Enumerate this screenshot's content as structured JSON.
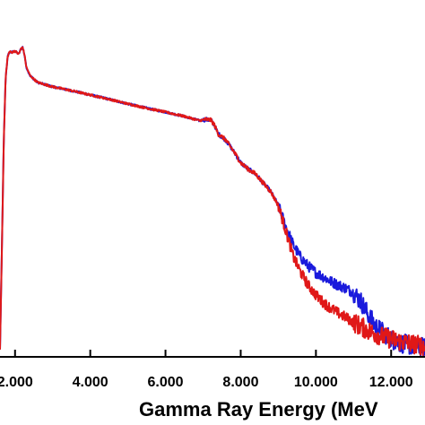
{
  "chart_data": {
    "type": "line",
    "title": "",
    "xlabel": "Gamma Ray Energy (MeV",
    "ylabel": "",
    "xlim": [
      1.6,
      12.9
    ],
    "ylim": [
      0,
      1.0
    ],
    "x_ticks": [
      2.0,
      4.0,
      6.0,
      8.0,
      10.0,
      12.0
    ],
    "x_tick_labels": [
      "2.000",
      "4.000",
      "6.000",
      "8.000",
      "10.000",
      "12.000"
    ],
    "legend": "none",
    "grid": false,
    "series": [
      {
        "color": "#1a1adc",
        "x": [
          1.6,
          1.65,
          1.7,
          1.75,
          1.8,
          1.85,
          1.9,
          2.0,
          2.1,
          2.15,
          2.2,
          2.25,
          2.3,
          2.4,
          2.6,
          3.0,
          3.5,
          4.0,
          4.5,
          5.0,
          5.5,
          6.0,
          6.5,
          6.9,
          7.05,
          7.2,
          7.3,
          7.4,
          7.6,
          7.8,
          8.0,
          8.2,
          8.4,
          8.6,
          8.8,
          9.0,
          9.2,
          9.4,
          9.6,
          9.8,
          10.0,
          10.2,
          10.4,
          10.6,
          10.8,
          11.0,
          11.2,
          11.4,
          11.6,
          11.8,
          12.0,
          12.2,
          12.4,
          12.6,
          12.8,
          12.9
        ],
        "y": [
          0.02,
          0.3,
          0.6,
          0.78,
          0.84,
          0.855,
          0.853,
          0.857,
          0.848,
          0.862,
          0.868,
          0.847,
          0.812,
          0.788,
          0.769,
          0.757,
          0.746,
          0.734,
          0.722,
          0.709,
          0.697,
          0.686,
          0.674,
          0.662,
          0.665,
          0.664,
          0.65,
          0.625,
          0.608,
          0.578,
          0.544,
          0.526,
          0.512,
          0.487,
          0.463,
          0.424,
          0.365,
          0.313,
          0.278,
          0.254,
          0.236,
          0.224,
          0.211,
          0.201,
          0.192,
          0.18,
          0.155,
          0.116,
          0.084,
          0.068,
          0.05,
          0.04,
          0.035,
          0.03,
          0.028,
          0.025
        ]
      },
      {
        "color": "#e01818",
        "x": [
          1.6,
          1.65,
          1.7,
          1.75,
          1.8,
          1.85,
          1.9,
          2.0,
          2.1,
          2.15,
          2.2,
          2.25,
          2.3,
          2.4,
          2.6,
          3.0,
          3.5,
          4.0,
          4.5,
          5.0,
          5.5,
          6.0,
          6.5,
          6.9,
          7.05,
          7.2,
          7.3,
          7.4,
          7.6,
          7.8,
          8.0,
          8.2,
          8.4,
          8.6,
          8.8,
          9.0,
          9.2,
          9.4,
          9.6,
          9.8,
          10.0,
          10.2,
          10.4,
          10.6,
          10.8,
          11.0,
          11.2,
          11.4,
          11.6,
          11.8,
          12.0,
          12.2,
          12.4,
          12.6,
          12.8,
          12.9
        ],
        "y": [
          0.02,
          0.3,
          0.6,
          0.78,
          0.84,
          0.855,
          0.853,
          0.857,
          0.848,
          0.862,
          0.868,
          0.847,
          0.812,
          0.788,
          0.769,
          0.757,
          0.746,
          0.734,
          0.722,
          0.709,
          0.697,
          0.686,
          0.674,
          0.662,
          0.665,
          0.664,
          0.65,
          0.625,
          0.608,
          0.578,
          0.544,
          0.526,
          0.512,
          0.487,
          0.463,
          0.424,
          0.353,
          0.28,
          0.236,
          0.2,
          0.173,
          0.152,
          0.136,
          0.122,
          0.11,
          0.097,
          0.085,
          0.073,
          0.064,
          0.056,
          0.05,
          0.044,
          0.04,
          0.036,
          0.032,
          0.03
        ]
      }
    ]
  }
}
